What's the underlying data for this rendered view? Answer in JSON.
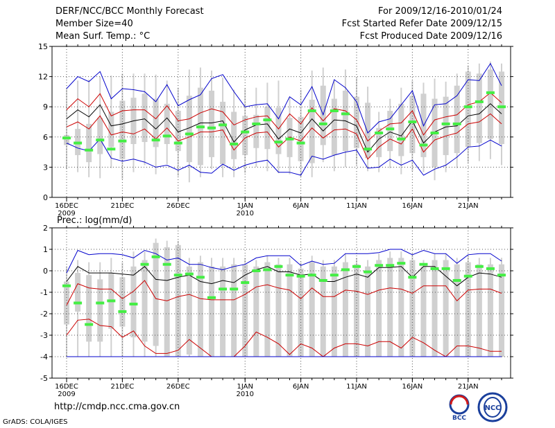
{
  "header": {
    "left_lines": [
      "DERF/NCC/BCC Monthly Forecast",
      "Member Size=40",
      "Mean Surf. Temp.: °C"
    ],
    "right_lines": [
      "For 2009/12/16-2010/01/24",
      "Fcst Started Refer Date 2009/12/15",
      "Fcst Produced Date 2009/12/16"
    ]
  },
  "footer": {
    "url": "http://cmdp.ncc.cma.gov.cn",
    "credit": "GrADS: COLA/IGES"
  },
  "logos": {
    "bcc": "BCC",
    "ncc": "NCC"
  },
  "colors": {
    "box": "#d0d0d0",
    "obs": "#44ee44",
    "envelope": "#0000cc",
    "inner": "#cc0000",
    "mean": "#000000"
  },
  "chart_data": [
    {
      "type": "box-ensemble",
      "title": "Mean Surf. Temp.: °C",
      "ylim": [
        0,
        15
      ],
      "yticks": [
        0,
        3,
        6,
        9,
        12,
        15
      ],
      "x_tick_labels": [
        {
          "day": 0,
          "label": "16DEC",
          "sub": "2009"
        },
        {
          "day": 5,
          "label": "21DEC",
          "sub": ""
        },
        {
          "day": 10,
          "label": "26DEC",
          "sub": ""
        },
        {
          "day": 16,
          "label": "1JAN",
          "sub": "2010"
        },
        {
          "day": 21,
          "label": "6JAN",
          "sub": ""
        },
        {
          "day": 26,
          "label": "11JAN",
          "sub": ""
        },
        {
          "day": 31,
          "label": "16JAN",
          "sub": ""
        },
        {
          "day": 36,
          "label": "21JAN",
          "sub": ""
        }
      ],
      "days": 40,
      "box_low": [
        5.2,
        4.2,
        3.5,
        4.3,
        5,
        3.8,
        5.3,
        5.5,
        5,
        5.3,
        4.6,
        3.5,
        3.2,
        4,
        3.3,
        3.8,
        4.2,
        4.9,
        4.8,
        4.3,
        4,
        3.6,
        3.4,
        5.2,
        4.2,
        4.6,
        4.9,
        3.9,
        4,
        4.6,
        4.1,
        4.4,
        4,
        3,
        4.2,
        4.4,
        5,
        5.4,
        5.8,
        5.3
      ],
      "box_high": [
        6.2,
        6.8,
        7.3,
        7.9,
        8.5,
        9.6,
        9.9,
        10.3,
        9.8,
        9.3,
        8.6,
        10.1,
        10.9,
        10.6,
        9.5,
        8.5,
        8.1,
        8.2,
        9,
        8.9,
        7.9,
        8,
        9.7,
        11.1,
        9.8,
        10.6,
        10,
        9.4,
        6.9,
        8.6,
        9.3,
        10.1,
        10.3,
        9.8,
        10,
        11.1,
        12.5,
        12.3,
        12.7,
        12.5
      ],
      "whisker_low": [
        2.8,
        2.5,
        2,
        1.9,
        2.9,
        1.8,
        2.5,
        3.2,
        2.3,
        3.3,
        2.1,
        1.5,
        2,
        2.8,
        2,
        2,
        2.4,
        3,
        2.6,
        2.4,
        2.3,
        2,
        2,
        3.5,
        2.6,
        3,
        3.2,
        2.6,
        2.5,
        2.9,
        2.3,
        2.6,
        2.5,
        1.7,
        2.5,
        2.9,
        3.4,
        3.6,
        3.8,
        3.2
      ],
      "whisker_high": [
        10.9,
        11.6,
        11.7,
        12,
        12.1,
        12.3,
        12.3,
        12.3,
        12.2,
        11.6,
        10.9,
        12.7,
        12.9,
        12.6,
        11.9,
        10.7,
        10.8,
        10.9,
        11.4,
        11.6,
        10,
        10.7,
        12.6,
        12.9,
        11.6,
        12.7,
        11.9,
        11,
        8.5,
        9.8,
        10.9,
        11.6,
        11.4,
        11.8,
        11.5,
        12.3,
        13.1,
        13.3,
        13.5,
        13.3
      ],
      "obs": [
        5.9,
        5.4,
        4.7,
        5.7,
        4.8,
        5.6,
        null,
        null,
        5.7,
        6.1,
        5.4,
        6.3,
        7,
        6.9,
        7.2,
        5.3,
        6.5,
        7.3,
        7.7,
        5.5,
        5.8,
        5.4,
        8.6,
        7.3,
        8.6,
        8.3,
        null,
        4.8,
        6.4,
        6.8,
        5.8,
        7.5,
        5.2,
        6.4,
        7.3,
        7.3,
        9,
        9.5,
        10.4,
        9
      ],
      "series": [
        {
          "name": "max",
          "values": [
            10.8,
            12,
            11.5,
            12.5,
            9.8,
            10.8,
            10.7,
            10.5,
            9.5,
            11.2,
            9.1,
            9.7,
            10.2,
            11.8,
            12.2,
            10.5,
            9,
            9.2,
            9.3,
            7.8,
            10,
            9.2,
            11,
            8.2,
            11.7,
            10.9,
            9.5,
            6.4,
            7.5,
            7.8,
            9.2,
            10.6,
            7.1,
            9.2,
            9.3,
            10.1,
            11.7,
            11.6,
            13.3,
            11.1
          ]
        },
        {
          "name": "upper",
          "values": [
            8.7,
            9.8,
            9,
            10.3,
            8.1,
            8.6,
            8.7,
            8.7,
            7.8,
            9.1,
            7.6,
            7.8,
            8.4,
            8.8,
            8.5,
            7.2,
            7.7,
            8,
            8.1,
            6.8,
            8.3,
            7.3,
            8.9,
            7.6,
            8.8,
            8.6,
            7.7,
            5.6,
            6.6,
            7.3,
            7.4,
            8.6,
            6.2,
            7.7,
            8,
            8.2,
            9.2,
            9.5,
            10.4,
            9.4
          ]
        },
        {
          "name": "mean",
          "values": [
            7.8,
            8.7,
            8,
            9.2,
            7.1,
            7.3,
            7.6,
            7.8,
            6.8,
            7.9,
            6.5,
            6.9,
            7.4,
            7.4,
            7.6,
            5.5,
            6.7,
            7.2,
            7.3,
            5.8,
            6.8,
            6.4,
            7.8,
            6.6,
            7.7,
            7.6,
            7.1,
            4.5,
            5.8,
            6.5,
            6.1,
            7.6,
            5.4,
            6.5,
            7,
            7.1,
            8.1,
            8.3,
            9.3,
            8.3
          ]
        },
        {
          "name": "lower",
          "values": [
            7,
            7.5,
            6.8,
            8.1,
            6.2,
            6.5,
            6.3,
            6.8,
            5.8,
            6.9,
            5.6,
            6,
            6.5,
            6.5,
            6.7,
            4.7,
            5.9,
            6.4,
            6.5,
            5,
            6,
            5.6,
            6.9,
            5.9,
            6.7,
            6.8,
            6.3,
            3.8,
            5,
            5.8,
            5.3,
            6.8,
            4.5,
            5.7,
            6.1,
            6.4,
            7.3,
            7.5,
            8.3,
            7.3
          ]
        },
        {
          "name": "min",
          "values": [
            5.4,
            4.9,
            4.6,
            5.8,
            3.9,
            3.6,
            3.8,
            3.5,
            3,
            3.2,
            2.7,
            3.2,
            2.5,
            2.4,
            3.3,
            2.7,
            3.2,
            3.5,
            3.7,
            2.5,
            2.5,
            2.2,
            4.1,
            3.8,
            4.2,
            4.5,
            4.7,
            2.9,
            3,
            3.8,
            3.2,
            3.7,
            2.2,
            2.8,
            3.2,
            4,
            5,
            5.1,
            5.7,
            5.1
          ]
        }
      ]
    },
    {
      "type": "box-ensemble",
      "title": "Prec.: log(mm/d)",
      "ylim": [
        -5,
        2
      ],
      "yticks": [
        -5,
        -4,
        -3,
        -2,
        -1,
        0,
        1,
        2
      ],
      "x_tick_labels": [
        {
          "day": 0,
          "label": "16DEC",
          "sub": "2009"
        },
        {
          "day": 5,
          "label": "21DEC",
          "sub": ""
        },
        {
          "day": 10,
          "label": "26DEC",
          "sub": ""
        },
        {
          "day": 16,
          "label": "1JAN",
          "sub": "2010"
        },
        {
          "day": 21,
          "label": "6JAN",
          "sub": ""
        },
        {
          "day": 26,
          "label": "11JAN",
          "sub": ""
        },
        {
          "day": 31,
          "label": "16JAN",
          "sub": ""
        },
        {
          "day": 36,
          "label": "21JAN",
          "sub": ""
        }
      ],
      "days": 40,
      "box_low": [
        -2.5,
        -1.9,
        -3.3,
        -3.3,
        -2.7,
        -2.6,
        -3.1,
        -3.3,
        -3.5,
        -4,
        -4,
        -3.9,
        -4,
        -4,
        -4,
        -4,
        -4,
        -4,
        -4,
        -4,
        -4,
        -4,
        -4,
        -4,
        -4,
        -4,
        -4,
        -4,
        -4,
        -4,
        -4,
        -4,
        -4,
        -4,
        -4,
        -4,
        -4,
        -4,
        -4,
        -4
      ],
      "box_high": [
        -0.5,
        -0.1,
        -0.2,
        -0.4,
        -0.1,
        -0.3,
        0.2,
        0.5,
        1.3,
        1.1,
        1.2,
        0.2,
        0.4,
        0.2,
        0.2,
        0.3,
        0.3,
        0.2,
        0.4,
        0.3,
        0.3,
        0.1,
        0.4,
        0.2,
        0.2,
        0.4,
        0.3,
        0.2,
        0.5,
        0.6,
        0.6,
        0.5,
        0.2,
        0.5,
        0.5,
        0.3,
        0.4,
        0.3,
        0.3,
        0.3
      ],
      "whisker_low": [
        -4,
        -4,
        -4,
        -4,
        -4,
        -4,
        -4,
        -4,
        -4,
        -4,
        -4,
        -4,
        -4,
        -4,
        -4,
        -4,
        -4,
        -4,
        -4,
        -4,
        -4,
        -4,
        -4,
        -4,
        -4,
        -4,
        -4,
        -4,
        -4,
        -4,
        -4,
        -4,
        -4,
        -4,
        -4,
        -4,
        -4,
        -4,
        -4,
        -4
      ],
      "whisker_high": [
        0.2,
        0.5,
        0.4,
        0.4,
        0.6,
        0.4,
        0.9,
        0.9,
        1.5,
        1.4,
        1.4,
        0.6,
        0.7,
        0.6,
        0.6,
        0.6,
        0.6,
        0.5,
        0.7,
        0.6,
        0.6,
        0.4,
        0.7,
        0.5,
        0.5,
        0.8,
        0.6,
        0.5,
        0.8,
        0.9,
        0.9,
        0.8,
        0.5,
        0.8,
        0.8,
        0.6,
        0.7,
        0.6,
        0.6,
        0.6
      ],
      "obs": [
        -0.7,
        -1.5,
        -2.5,
        -1.5,
        -1.4,
        -1.9,
        -1.55,
        0.3,
        0.65,
        0.3,
        -0.2,
        -0.15,
        -0.3,
        -1.25,
        -0.85,
        -0.85,
        -0.55,
        0,
        0.05,
        0.2,
        -0.2,
        -0.25,
        -0.2,
        -0.45,
        -0.2,
        0.05,
        0.2,
        -0.05,
        0.25,
        0.25,
        0.35,
        -0.3,
        0.3,
        0.1,
        0.1,
        -0.45,
        -0.25,
        0.2,
        0.1,
        -0.2
      ],
      "series": [
        {
          "name": "max",
          "values": [
            -0.1,
            0.95,
            0.75,
            0.8,
            0.8,
            0.75,
            0.6,
            0.95,
            0.8,
            0.5,
            0.6,
            0.3,
            0.3,
            0.15,
            0.05,
            0.2,
            0.3,
            0.6,
            0.7,
            0.7,
            0.7,
            0.25,
            0.45,
            0.3,
            0.35,
            0.8,
            0.8,
            0.8,
            0.85,
            1,
            1,
            0.75,
            0.95,
            0.8,
            0.8,
            0.35,
            0.75,
            0.8,
            0.8,
            0.45
          ]
        },
        {
          "name": "mean",
          "values": [
            -0.5,
            0.2,
            -0.1,
            -0.1,
            -0.1,
            -0.15,
            -0.2,
            0.2,
            -0.4,
            -0.45,
            -0.3,
            -0.2,
            -0.5,
            -0.6,
            -0.45,
            -0.55,
            -0.2,
            0.05,
            0.2,
            -0.05,
            -0.05,
            -0.2,
            -0.15,
            -0.5,
            -0.5,
            -0.3,
            -0.15,
            -0.3,
            0.15,
            0.15,
            0.2,
            -0.3,
            0.2,
            0.2,
            -0.25,
            -0.7,
            -0.3,
            -0.1,
            -0.15,
            -0.3
          ]
        },
        {
          "name": "upper",
          "values": [
            -1.6,
            -0.6,
            -0.8,
            -0.85,
            -0.85,
            -1.3,
            -0.95,
            -0.45,
            -1.3,
            -1.4,
            -1.2,
            -1.1,
            -1.3,
            -1.35,
            -1.35,
            -1.35,
            -1.1,
            -0.75,
            -0.65,
            -0.8,
            -0.9,
            -1.3,
            -0.8,
            -1.2,
            -1.2,
            -0.9,
            -0.95,
            -1.1,
            -0.9,
            -0.8,
            -0.85,
            -1.05,
            -0.7,
            -0.7,
            -0.7,
            -1.4,
            -0.9,
            -0.85,
            -0.85,
            -1.05
          ]
        },
        {
          "name": "lower",
          "values": [
            -3,
            -2.3,
            -2.25,
            -2.55,
            -2.6,
            -3.1,
            -2.8,
            -3.5,
            -3.85,
            -3.85,
            -3.7,
            -3.2,
            -3.6,
            -4,
            -4,
            -4,
            -3.5,
            -2.85,
            -3.1,
            -3.4,
            -3.9,
            -3.4,
            -3.6,
            -4,
            -3.6,
            -3.4,
            -3.4,
            -3.5,
            -3.3,
            -3.3,
            -3.6,
            -3.1,
            -3.35,
            -3.7,
            -4,
            -3.5,
            -3.5,
            -3.6,
            -3.75,
            -3.75
          ]
        },
        {
          "name": "min",
          "values": [
            -4,
            -4,
            -4,
            -4,
            -4,
            -4,
            -4,
            -4,
            -4,
            -4,
            -4,
            -4,
            -4,
            -4,
            -4,
            -4,
            -4,
            -4,
            -4,
            -4,
            -4,
            -4,
            -4,
            -4,
            -4,
            -4,
            -4,
            -4,
            -4,
            -4,
            -4,
            -4,
            -4,
            -4,
            -4,
            -4,
            -4,
            -4,
            -4,
            -4
          ]
        }
      ]
    }
  ]
}
